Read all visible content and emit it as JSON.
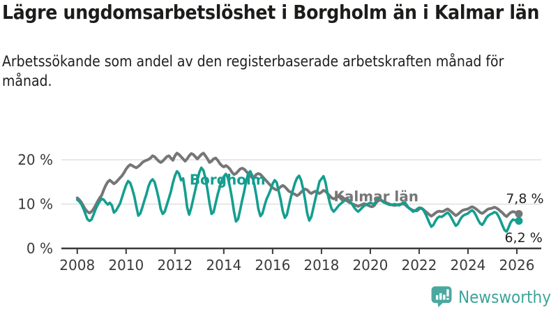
{
  "header": {
    "title": "Lägre ungdomsarbetslöshet i Borgholm än i Kalmar län",
    "subtitle": "Arbetssökande som andel av den registerbaserade arbetskraften månad för månad."
  },
  "footer": {
    "brand": "Newsworthy",
    "logo_icon": "bar-chart-speech-bubble-icon"
  },
  "colors": {
    "borgholm_teal": "#149e8f",
    "kalmar_gray": "#767676",
    "grid": "#d9d9d9",
    "axis": "#3a3a3a",
    "axis_text": "#3a3a3a",
    "annotation_text": "#222222",
    "brand_teal": "#3da49b"
  },
  "chart_data": {
    "type": "line",
    "unit": "%",
    "frequency": "monthly",
    "start_year": 2008,
    "start_month": 1,
    "xlim": [
      2007.35,
      2027.0
    ],
    "ylim": [
      0,
      25.2
    ],
    "grid": "horizontal-only",
    "x_ticks": [
      2008,
      2010,
      2012,
      2014,
      2016,
      2018,
      2020,
      2022,
      2024,
      2026
    ],
    "x_tick_labels": [
      "2008",
      "2010",
      "2012",
      "2014",
      "2016",
      "2018",
      "2020",
      "2022",
      "2024",
      "2026"
    ],
    "y_ticks": [
      {
        "value": 0,
        "label": "0 %"
      },
      {
        "value": 10,
        "label": "10 %"
      },
      {
        "value": 20,
        "label": "20 %"
      }
    ],
    "series": [
      {
        "name": "Kalmar län",
        "color": "#767676",
        "stroke_width": 4,
        "end_dot": true,
        "values": [
          11.4,
          11.0,
          10.4,
          9.6,
          8.8,
          8.3,
          8.0,
          8.3,
          8.9,
          9.7,
          10.6,
          11.4,
          12.0,
          13.2,
          14.2,
          15.0,
          15.4,
          15.0,
          14.6,
          14.9,
          15.4,
          15.9,
          16.4,
          17.1,
          17.9,
          18.5,
          18.9,
          18.7,
          18.4,
          18.2,
          18.5,
          18.9,
          19.4,
          19.7,
          19.9,
          20.1,
          20.4,
          20.9,
          20.7,
          20.2,
          19.7,
          19.4,
          19.7,
          20.2,
          20.7,
          20.9,
          20.4,
          19.9,
          20.9,
          21.5,
          21.2,
          20.7,
          20.2,
          19.7,
          20.2,
          20.9,
          21.4,
          21.2,
          20.7,
          20.2,
          20.7,
          21.2,
          21.5,
          20.9,
          20.2,
          19.4,
          19.7,
          20.2,
          20.4,
          19.9,
          19.2,
          18.7,
          18.4,
          18.7,
          18.4,
          17.9,
          17.2,
          16.7,
          16.9,
          17.4,
          17.9,
          18.1,
          17.9,
          17.4,
          16.9,
          16.4,
          15.9,
          16.2,
          16.7,
          16.9,
          16.7,
          16.2,
          15.7,
          15.2,
          14.7,
          14.2,
          13.7,
          13.4,
          13.2,
          13.5,
          13.9,
          14.2,
          13.9,
          13.4,
          12.9,
          12.7,
          12.4,
          12.2,
          11.9,
          12.2,
          12.7,
          13.1,
          13.4,
          13.2,
          12.7,
          12.4,
          12.7,
          12.9,
          12.7,
          12.4,
          12.7,
          13.1,
          12.9,
          12.4,
          11.9,
          11.4,
          11.2,
          11.4,
          11.7,
          11.9,
          11.7,
          11.3,
          10.9,
          10.6,
          10.3,
          10.1,
          9.9,
          9.7,
          9.5,
          9.7,
          9.9,
          10.1,
          9.9,
          9.7,
          9.5,
          9.4,
          9.7,
          10.4,
          10.8,
          10.9,
          10.7,
          10.5,
          10.3,
          10.1,
          9.9,
          9.8,
          9.7,
          9.8,
          9.9,
          10.0,
          10.1,
          9.9,
          9.5,
          9.1,
          8.8,
          8.6,
          8.5,
          8.5,
          8.9,
          9.1,
          8.8,
          8.4,
          8.0,
          7.6,
          7.3,
          7.6,
          8.0,
          8.3,
          8.4,
          8.3,
          8.4,
          8.7,
          8.9,
          8.6,
          8.2,
          7.8,
          7.4,
          7.7,
          8.1,
          8.5,
          8.7,
          8.8,
          8.9,
          9.2,
          9.4,
          9.2,
          8.9,
          8.5,
          8.1,
          7.9,
          8.2,
          8.6,
          8.9,
          9.0,
          9.1,
          9.3,
          9.1,
          8.8,
          8.4,
          8.0,
          7.5,
          7.2,
          7.7,
          8.1,
          8.3,
          8.2,
          8.0,
          7.8
        ]
      },
      {
        "name": "Borgholm",
        "color": "#149e8f",
        "stroke_width": 3.6,
        "end_dot": true,
        "values": [
          11.0,
          10.6,
          10.0,
          9.0,
          7.8,
          6.6,
          6.2,
          6.5,
          7.6,
          8.8,
          9.8,
          10.6,
          11.2,
          11.0,
          10.4,
          9.9,
          10.3,
          9.7,
          8.1,
          8.5,
          9.3,
          10.1,
          11.5,
          13.0,
          14.3,
          15.2,
          14.8,
          13.5,
          11.8,
          9.5,
          7.4,
          7.9,
          9.3,
          10.8,
          12.3,
          14.0,
          15.1,
          15.6,
          15.0,
          13.3,
          11.3,
          8.9,
          7.8,
          8.3,
          9.8,
          11.3,
          12.8,
          14.8,
          16.4,
          17.4,
          16.9,
          15.4,
          15.8,
          12.9,
          9.3,
          7.6,
          9.2,
          11.2,
          13.2,
          15.3,
          17.2,
          18.2,
          17.6,
          15.8,
          13.2,
          10.2,
          7.8,
          8.2,
          10.2,
          12.2,
          13.8,
          15.3,
          16.2,
          16.8,
          15.9,
          13.9,
          11.4,
          8.4,
          6.1,
          6.6,
          8.6,
          10.8,
          12.8,
          15.2,
          16.9,
          17.4,
          16.4,
          14.4,
          11.9,
          8.9,
          7.3,
          7.9,
          9.6,
          11.1,
          12.1,
          13.2,
          14.6,
          15.4,
          14.9,
          12.9,
          10.9,
          8.4,
          6.9,
          7.6,
          9.6,
          11.6,
          13.2,
          14.8,
          15.9,
          16.4,
          15.4,
          13.4,
          10.9,
          7.9,
          6.3,
          7.1,
          9.1,
          11.1,
          13.1,
          15.1,
          15.7,
          16.3,
          14.9,
          12.4,
          10.4,
          8.9,
          8.3,
          8.8,
          9.4,
          9.9,
          10.3,
          10.7,
          10.9,
          11.1,
          10.6,
          10.0,
          9.3,
          8.7,
          8.3,
          8.7,
          9.2,
          9.6,
          9.9,
          10.1,
          10.3,
          10.1,
          10.0,
          10.9,
          11.3,
          11.1,
          10.6,
          10.3,
          10.1,
          9.9,
          9.8,
          9.9,
          10.0,
          9.9,
          9.7,
          9.9,
          10.3,
          10.4,
          9.7,
          9.1,
          8.7,
          8.3,
          8.5,
          8.9,
          9.2,
          9.1,
          8.7,
          7.9,
          6.9,
          5.8,
          4.9,
          5.3,
          6.2,
          6.9,
          7.2,
          7.1,
          7.4,
          7.8,
          8.1,
          7.6,
          6.8,
          5.9,
          5.1,
          5.5,
          6.4,
          7.1,
          7.5,
          7.7,
          7.9,
          8.3,
          8.6,
          8.2,
          7.4,
          6.4,
          5.6,
          5.3,
          6.0,
          6.9,
          7.4,
          7.7,
          7.9,
          8.2,
          8.0,
          7.3,
          6.3,
          5.1,
          4.1,
          3.8,
          4.8,
          5.9,
          6.5,
          6.4,
          6.3,
          6.2
        ]
      }
    ],
    "annotations": [
      {
        "text": "Borgholm",
        "x": 2012.6,
        "y": 14.4,
        "color": "#149e8f",
        "weight": "bold",
        "size": 20,
        "anchor": "start"
      },
      {
        "text": "Kalmar län",
        "x": 2018.5,
        "y": 10.6,
        "color": "#767676",
        "weight": "bold",
        "size": 20,
        "anchor": "start"
      },
      {
        "text": "7,8 %",
        "x": 2025.55,
        "y": 10.2,
        "color": "#222222",
        "weight": "normal",
        "size": 19,
        "anchor": "start"
      },
      {
        "text": "6,2 %",
        "x": 2025.5,
        "y": 1.4,
        "color": "#222222",
        "weight": "normal",
        "size": 19,
        "anchor": "start"
      }
    ],
    "legend_position": "inline-labels",
    "last_values_shown": {
      "Kalmar län": "7,8 %",
      "Borgholm": "6,2 %"
    }
  }
}
